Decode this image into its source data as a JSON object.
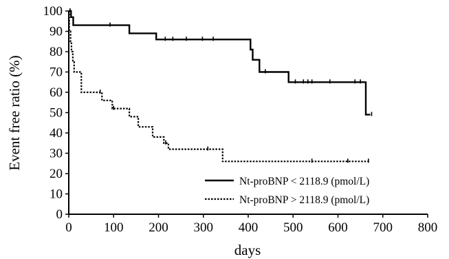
{
  "chart_data": {
    "type": "line",
    "step": true,
    "xlabel": "days",
    "ylabel": "Event free ratio (%)",
    "xlim": [
      0,
      800
    ],
    "ylim": [
      0,
      100
    ],
    "x_ticks": [
      0,
      100,
      200,
      300,
      400,
      500,
      600,
      700,
      800
    ],
    "y_ticks": [
      0,
      10,
      20,
      30,
      40,
      50,
      60,
      70,
      80,
      90,
      100
    ],
    "grid": false,
    "legend_position": "bottom-right",
    "series": [
      {
        "name": "Nt-proBNP < 2118.9 (pmol/L)",
        "line_style": "solid",
        "color": "#000000",
        "steps": [
          [
            0,
            100
          ],
          [
            5,
            100
          ],
          [
            5,
            97
          ],
          [
            10,
            97
          ],
          [
            10,
            93
          ],
          [
            135,
            93
          ],
          [
            135,
            89
          ],
          [
            195,
            89
          ],
          [
            195,
            86
          ],
          [
            405,
            86
          ],
          [
            405,
            81
          ],
          [
            410,
            81
          ],
          [
            410,
            76
          ],
          [
            425,
            76
          ],
          [
            425,
            70
          ],
          [
            490,
            70
          ],
          [
            490,
            65
          ],
          [
            662,
            65
          ],
          [
            662,
            49
          ],
          [
            672,
            49
          ]
        ],
        "censor_x": [
          3,
          92,
          215,
          232,
          262,
          298,
          322,
          438,
          505,
          523,
          533,
          542,
          582,
          638,
          650,
          675
        ]
      },
      {
        "name": "Nt-proBNP > 2118.9 (pmol/L)",
        "line_style": "dotted",
        "color": "#000000",
        "steps": [
          [
            0,
            100
          ],
          [
            1,
            100
          ],
          [
            1,
            90
          ],
          [
            4,
            90
          ],
          [
            4,
            85
          ],
          [
            6,
            85
          ],
          [
            6,
            80
          ],
          [
            9,
            80
          ],
          [
            9,
            75
          ],
          [
            12,
            75
          ],
          [
            12,
            70
          ],
          [
            28,
            70
          ],
          [
            28,
            60
          ],
          [
            74,
            60
          ],
          [
            74,
            56
          ],
          [
            97,
            56
          ],
          [
            97,
            52
          ],
          [
            135,
            52
          ],
          [
            135,
            48
          ],
          [
            155,
            48
          ],
          [
            155,
            43
          ],
          [
            187,
            43
          ],
          [
            187,
            38
          ],
          [
            212,
            38
          ],
          [
            212,
            35
          ],
          [
            222,
            35
          ],
          [
            222,
            32
          ],
          [
            343,
            32
          ],
          [
            343,
            26
          ],
          [
            668,
            26
          ]
        ],
        "censor_x": [
          70,
          100,
          216,
          310,
          542,
          622,
          668
        ]
      }
    ]
  }
}
